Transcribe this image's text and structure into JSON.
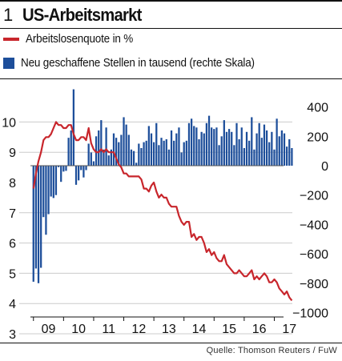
{
  "header": {
    "number": "1",
    "title": "US-Arbeitsmarkt"
  },
  "legend": {
    "line_label": "Arbeitslosenquote in %",
    "bar_label": "Neu geschaffene Stellen in tausend (rechte Skala)"
  },
  "source": "Quelle: Thomson Reuters / FuW",
  "colors": {
    "line": "#c8262c",
    "bars": "#1d4e9a",
    "grid": "#cccccc"
  },
  "chart_data": {
    "type": "line+bar",
    "x_tick_labels": [
      "09",
      "10",
      "11",
      "12",
      "13",
      "14",
      "15",
      "16",
      "17"
    ],
    "x_range": [
      2008.9,
      2017.2
    ],
    "left_axis": {
      "ticks": [
        "3",
        "4",
        "5",
        "6",
        "7",
        "8",
        "9",
        "10"
      ],
      "ylim": [
        3,
        10.5
      ]
    },
    "right_axis": {
      "ticks": [
        "400",
        "200",
        "0",
        "−200",
        "−400",
        "−600",
        "−800",
        "−1000"
      ],
      "ylim": [
        -1000,
        500
      ]
    },
    "grid": "horizontal",
    "series": [
      {
        "name": "Arbeitslosenquote in %",
        "kind": "line",
        "axis": "left",
        "start": "2009-01",
        "values": [
          7.8,
          8.3,
          8.7,
          9.0,
          9.4,
          9.5,
          9.5,
          9.6,
          9.8,
          10.0,
          9.9,
          9.9,
          9.8,
          9.8,
          9.9,
          9.9,
          9.6,
          9.4,
          9.4,
          9.5,
          9.5,
          9.4,
          9.8,
          9.3,
          9.1,
          9.0,
          9.0,
          9.1,
          9.0,
          9.1,
          9.0,
          9.0,
          9.0,
          8.8,
          8.6,
          8.5,
          8.3,
          8.3,
          8.2,
          8.2,
          8.2,
          8.2,
          8.2,
          8.1,
          7.8,
          7.8,
          7.7,
          7.9,
          8.0,
          7.7,
          7.5,
          7.6,
          7.5,
          7.5,
          7.3,
          7.2,
          7.2,
          7.2,
          6.9,
          6.7,
          6.6,
          6.7,
          6.7,
          6.2,
          6.3,
          6.1,
          6.2,
          6.2,
          6.0,
          5.7,
          5.8,
          5.6,
          5.7,
          5.5,
          5.4,
          5.4,
          5.6,
          5.3,
          5.2,
          5.1,
          5.0,
          5.0,
          5.1,
          5.0,
          4.9,
          4.9,
          5.0,
          5.1,
          4.8,
          4.9,
          4.8,
          4.9,
          5.0,
          4.9,
          4.7,
          4.7,
          4.8,
          4.7,
          4.5,
          4.4,
          4.3,
          4.4,
          4.2,
          4.1
        ]
      },
      {
        "name": "Neu geschaffene Stellen in tausend (rechte Skala)",
        "kind": "bar",
        "axis": "right",
        "start": "2009-01",
        "values": [
          -790,
          -700,
          -800,
          -695,
          -350,
          -470,
          -330,
          -210,
          -220,
          -200,
          -10,
          -110,
          -40,
          -35,
          190,
          240,
          520,
          -130,
          -100,
          -30,
          -80,
          -30,
          150,
          90,
          30,
          200,
          240,
          310,
          110,
          260,
          70,
          110,
          220,
          190,
          160,
          210,
          330,
          280,
          210,
          110,
          100,
          20,
          150,
          120,
          160,
          170,
          270,
          220,
          160,
          290,
          140,
          190,
          170,
          180,
          110,
          240,
          170,
          220,
          260,
          90,
          160,
          170,
          290,
          320,
          270,
          260,
          180,
          230,
          220,
          290,
          340,
          260,
          250,
          260,
          140,
          200,
          310,
          230,
          250,
          230,
          140,
          290,
          180,
          260,
          120,
          230,
          170,
          330,
          110,
          220,
          290,
          190,
          280,
          240,
          160,
          230,
          110,
          320,
          200,
          240,
          220,
          130,
          180,
          120
        ]
      }
    ]
  }
}
